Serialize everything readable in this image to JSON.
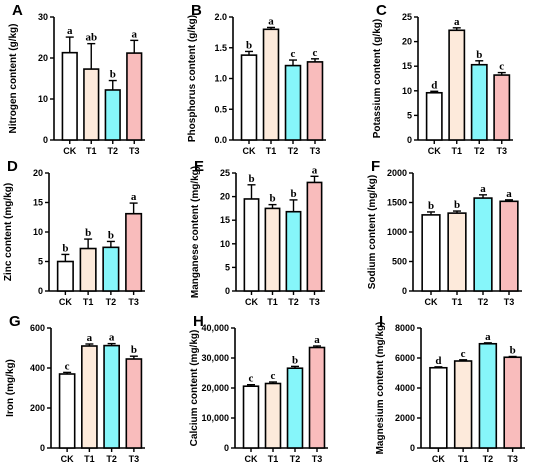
{
  "colors": {
    "CK": "#ffffff",
    "T1": "#fdeadb",
    "T2": "#86f6fa",
    "T3": "#f9bcbc"
  },
  "chart_data": [
    {
      "id": "nitrogen",
      "type": "bar",
      "panel": "A",
      "ylabel": "Nitrogen content (g/kg)",
      "categories": [
        "CK",
        "T1",
        "T2",
        "T3"
      ],
      "values": [
        21.3,
        17.3,
        12.2,
        21.2
      ],
      "errors": [
        3.8,
        6.2,
        2.3,
        3.1
      ],
      "labels": [
        "a",
        "ab",
        "b",
        "a"
      ],
      "ylim": [
        0,
        30
      ],
      "yticks": [
        0,
        10,
        20,
        30
      ],
      "yticklabels": [
        "0",
        "10",
        "20",
        "30"
      ]
    },
    {
      "id": "phosphorus",
      "type": "bar",
      "panel": "B",
      "ylabel": "Phosphorus content (g/kg)",
      "categories": [
        "CK",
        "T1",
        "T2",
        "T3"
      ],
      "values": [
        1.38,
        1.8,
        1.21,
        1.27
      ],
      "errors": [
        0.06,
        0.03,
        0.09,
        0.05
      ],
      "labels": [
        "b",
        "a",
        "c",
        "c"
      ],
      "ylim": [
        0,
        2.0
      ],
      "yticks": [
        0,
        0.5,
        1.0,
        1.5,
        2.0
      ],
      "yticklabels": [
        "0.0",
        "0.5",
        "1.0",
        "1.5",
        "2.0"
      ]
    },
    {
      "id": "potassium",
      "type": "bar",
      "panel": "C",
      "ylabel": "Potassium content (g/kg)",
      "categories": [
        "CK",
        "T1",
        "T2",
        "T3"
      ],
      "values": [
        9.6,
        22.3,
        15.3,
        13.2
      ],
      "errors": [
        0.3,
        0.5,
        0.8,
        0.5
      ],
      "labels": [
        "d",
        "a",
        "b",
        "c"
      ],
      "ylim": [
        0,
        25
      ],
      "yticks": [
        0,
        5,
        10,
        15,
        20,
        25
      ],
      "yticklabels": [
        "0",
        "5",
        "10",
        "15",
        "20",
        "25"
      ]
    },
    {
      "id": "zinc",
      "type": "bar",
      "panel": "D",
      "ylabel": "Zinc content (mg/kg)",
      "categories": [
        "CK",
        "T1",
        "T2",
        "T3"
      ],
      "values": [
        5.0,
        7.2,
        7.4,
        13.1
      ],
      "errors": [
        1.2,
        1.6,
        1.0,
        1.8
      ],
      "labels": [
        "b",
        "b",
        "b",
        "a"
      ],
      "ylim": [
        0,
        20
      ],
      "yticks": [
        0,
        5,
        10,
        15,
        20
      ],
      "yticklabels": [
        "0",
        "5",
        "10",
        "15",
        "20"
      ]
    },
    {
      "id": "manganese",
      "type": "bar",
      "panel": "E",
      "ylabel": "Manganese content (mg/kg)",
      "categories": [
        "CK",
        "T1",
        "T2",
        "T3"
      ],
      "values": [
        19.5,
        17.5,
        16.8,
        23.0
      ],
      "errors": [
        3.0,
        0.8,
        2.5,
        1.3
      ],
      "labels": [
        "b",
        "b",
        "b",
        "a"
      ],
      "ylim": [
        0,
        25
      ],
      "yticks": [
        0,
        5,
        10,
        15,
        20,
        25
      ],
      "yticklabels": [
        "0",
        "5",
        "10",
        "15",
        "20",
        "25"
      ]
    },
    {
      "id": "sodium",
      "type": "bar",
      "panel": "F",
      "ylabel": "Sodium content (mg/kg)",
      "categories": [
        "CK",
        "T1",
        "T2",
        "T3"
      ],
      "values": [
        1290,
        1320,
        1575,
        1520
      ],
      "errors": [
        50,
        35,
        55,
        25
      ],
      "labels": [
        "b",
        "b",
        "a",
        "a"
      ],
      "ylim": [
        0,
        2000
      ],
      "yticks": [
        0,
        500,
        1000,
        1500,
        2000
      ],
      "yticklabels": [
        "0",
        "500",
        "1000",
        "1500",
        "2000"
      ]
    },
    {
      "id": "iron",
      "type": "bar",
      "panel": "G",
      "ylabel": "Iron (mg/kg)",
      "categories": [
        "CK",
        "T1",
        "T2",
        "T3"
      ],
      "values": [
        370,
        510,
        512,
        445
      ],
      "errors": [
        8,
        10,
        10,
        14
      ],
      "labels": [
        "c",
        "a",
        "a",
        "b"
      ],
      "ylim": [
        0,
        600
      ],
      "yticks": [
        0,
        200,
        400,
        600
      ],
      "yticklabels": [
        "0",
        "200",
        "400",
        "600"
      ]
    },
    {
      "id": "calcium",
      "type": "bar",
      "panel": "H",
      "ylabel": "Calcium content (mg/kg)",
      "categories": [
        "CK",
        "T1",
        "T2",
        "T3"
      ],
      "values": [
        20600,
        21500,
        26600,
        33500
      ],
      "errors": [
        500,
        500,
        600,
        500
      ],
      "labels": [
        "c",
        "c",
        "b",
        "a"
      ],
      "ylim": [
        0,
        40000
      ],
      "yticks": [
        0,
        10000,
        20000,
        30000,
        40000
      ],
      "yticklabels": [
        "0",
        "10,000",
        "20,000",
        "30,000",
        "40,000"
      ]
    },
    {
      "id": "magnesium",
      "type": "bar",
      "panel": "I",
      "ylabel": "Magnesium content (mg/kg)",
      "categories": [
        "CK",
        "T1",
        "T2",
        "T3"
      ],
      "values": [
        5350,
        5800,
        6950,
        6050
      ],
      "errors": [
        60,
        80,
        60,
        50
      ],
      "labels": [
        "d",
        "c",
        "a",
        "b"
      ],
      "ylim": [
        0,
        8000
      ],
      "yticks": [
        0,
        2000,
        4000,
        6000,
        8000
      ],
      "yticklabels": [
        "0",
        "2000",
        "4000",
        "6000",
        "8000"
      ]
    }
  ]
}
